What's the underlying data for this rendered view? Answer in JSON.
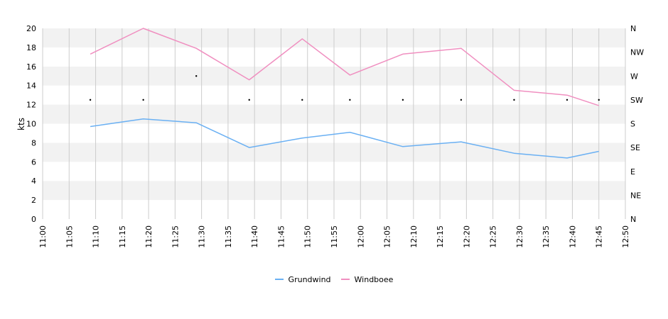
{
  "chart_data": {
    "type": "line",
    "ylabel": "kts",
    "x_ticks": [
      "11:00",
      "11:05",
      "11:10",
      "11:15",
      "11:20",
      "11:25",
      "11:30",
      "11:35",
      "11:40",
      "11:45",
      "11:50",
      "11:55",
      "12:00",
      "12:05",
      "12:10",
      "12:15",
      "12:20",
      "12:25",
      "12:30",
      "12:35",
      "12:40",
      "12:45",
      "12:50"
    ],
    "xlim": [
      "11:00",
      "12:50"
    ],
    "ylim": [
      0,
      20
    ],
    "y_ticks": [
      0,
      2,
      4,
      6,
      8,
      10,
      12,
      14,
      16,
      18,
      20
    ],
    "y2_ticks": [
      "N",
      "NE",
      "E",
      "SE",
      "S",
      "SW",
      "W",
      "NW",
      "N"
    ],
    "grid": true,
    "legend_position": "bottom-center",
    "x": [
      "11:09",
      "11:19",
      "11:29",
      "11:39",
      "11:49",
      "11:58",
      "12:08",
      "12:19",
      "12:29",
      "12:39",
      "12:45"
    ],
    "series": [
      {
        "name": "Grundwind",
        "color": "#6ab0f3",
        "values": [
          9.7,
          10.5,
          10.1,
          7.5,
          8.5,
          9.1,
          7.6,
          8.1,
          6.9,
          6.4,
          7.1
        ]
      },
      {
        "name": "Windboee",
        "color": "#f08fc0",
        "values": [
          17.3,
          20.0,
          17.9,
          14.6,
          18.9,
          15.1,
          17.3,
          17.9,
          13.5,
          13.0,
          11.9
        ]
      }
    ],
    "direction": {
      "axis": "right",
      "x": [
        "11:09",
        "11:19",
        "11:29",
        "11:39",
        "11:49",
        "11:58",
        "12:08",
        "12:19",
        "12:29",
        "12:39",
        "12:45"
      ],
      "values": [
        "SW",
        "SW",
        "W",
        "SW",
        "SW",
        "SW",
        "SW",
        "SW",
        "SW",
        "SW",
        "SW"
      ]
    }
  }
}
